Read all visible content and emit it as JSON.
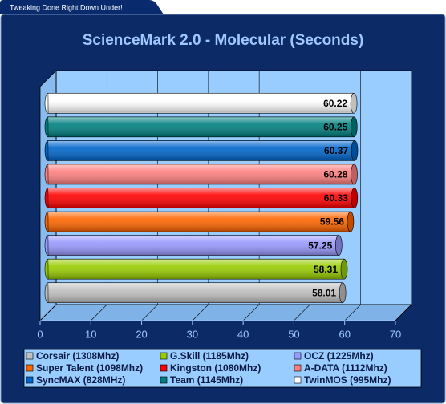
{
  "banner": "Tweaking Done Right Down Under!",
  "chart_data": {
    "type": "bar",
    "orientation": "horizontal",
    "title": "ScienceMark 2.0 - Molecular (Seconds)",
    "series": [
      {
        "name": "Corsair (1308Mhz)",
        "color": "#c0c0c0",
        "values": [
          58.01
        ]
      },
      {
        "name": "G.Skill (1185Mhz)",
        "color": "#99cc00",
        "values": [
          58.31
        ]
      },
      {
        "name": "OCZ (1225Mhz)",
        "color": "#9999ff",
        "values": [
          57.25
        ]
      },
      {
        "name": "Super Talent (1098Mhz)",
        "color": "#ff6600",
        "values": [
          59.56
        ]
      },
      {
        "name": "Kingston (1080Mhz)",
        "color": "#ff0000",
        "values": [
          60.33
        ]
      },
      {
        "name": "A-DATA (1112Mhz)",
        "color": "#ff8080",
        "values": [
          60.28
        ]
      },
      {
        "name": "SyncMAX (828MHz)",
        "color": "#0066cc",
        "values": [
          60.37
        ]
      },
      {
        "name": "Team (1145Mhz)",
        "color": "#008080",
        "values": [
          60.25
        ]
      },
      {
        "name": "TwinMOS (995Mhz)",
        "color": "#ffffff",
        "values": [
          60.22
        ]
      }
    ],
    "xlim": [
      0,
      70
    ],
    "xticks": [
      0,
      10,
      20,
      30,
      40,
      50,
      60,
      70
    ],
    "grid": true,
    "legend": "bottom"
  }
}
